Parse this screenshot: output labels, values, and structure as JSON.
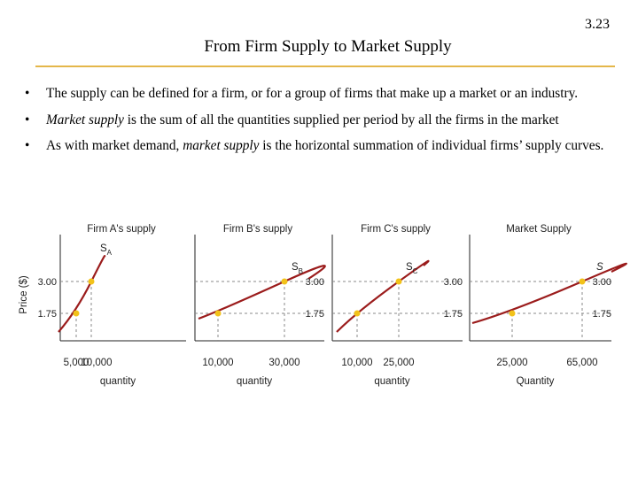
{
  "slide_number": "3.23",
  "title": "From Firm Supply to Market Supply",
  "bullets": [
    {
      "bullet": "•",
      "parts": [
        "The supply can be defined for a firm, or for a group of firms that make up a market or an industry."
      ]
    },
    {
      "bullet": "•",
      "parts": [
        "Market supply",
        " is the sum of all the quantities supplied per period by all the firms in the market"
      ]
    },
    {
      "bullet": "•",
      "parts": [
        "As with market demand, ",
        "market supply",
        " is the horizontal summation of individual firms’ supply curves."
      ]
    }
  ],
  "colors": {
    "curve": "#9b1c1c",
    "dot": "#f2c21a",
    "rule": "#e4b74a",
    "dashed": "#888888"
  },
  "chart_data": [
    {
      "type": "line",
      "title": "Firm A's supply",
      "curve_label": "S",
      "curve_subscript": "A",
      "xlabel": "quantity",
      "ylabel": "Price ($)",
      "x_ticks": [
        "5,000",
        "10,000"
      ],
      "y_ticks": [
        "1.75",
        "3.00"
      ],
      "points": [
        {
          "x": 5000,
          "y": 1.75
        },
        {
          "x": 10000,
          "y": 3.0
        }
      ]
    },
    {
      "type": "line",
      "title": "Firm B's supply",
      "curve_label": "S",
      "curve_subscript": "B",
      "xlabel": "quantity",
      "ylabel": "",
      "x_ticks": [
        "10,000",
        "30,000"
      ],
      "y_ticks": [
        "1.75",
        "3.00"
      ],
      "points": [
        {
          "x": 10000,
          "y": 1.75
        },
        {
          "x": 30000,
          "y": 3.0
        }
      ]
    },
    {
      "type": "line",
      "title": "Firm C's supply",
      "curve_label": "S",
      "curve_subscript": "C",
      "xlabel": "quantity",
      "ylabel": "",
      "x_ticks": [
        "10,000",
        "25,000"
      ],
      "y_ticks": [
        "1.75",
        "3.00"
      ],
      "points": [
        {
          "x": 10000,
          "y": 1.75
        },
        {
          "x": 25000,
          "y": 3.0
        }
      ]
    },
    {
      "type": "line",
      "title": "Market Supply",
      "curve_label": "S",
      "curve_subscript": "",
      "xlabel": "Quantity",
      "ylabel": "",
      "x_ticks": [
        "25,000",
        "65,000"
      ],
      "y_ticks": [
        "1.75",
        "3.00"
      ],
      "points": [
        {
          "x": 25000,
          "y": 1.75
        },
        {
          "x": 65000,
          "y": 3.0
        }
      ]
    }
  ]
}
